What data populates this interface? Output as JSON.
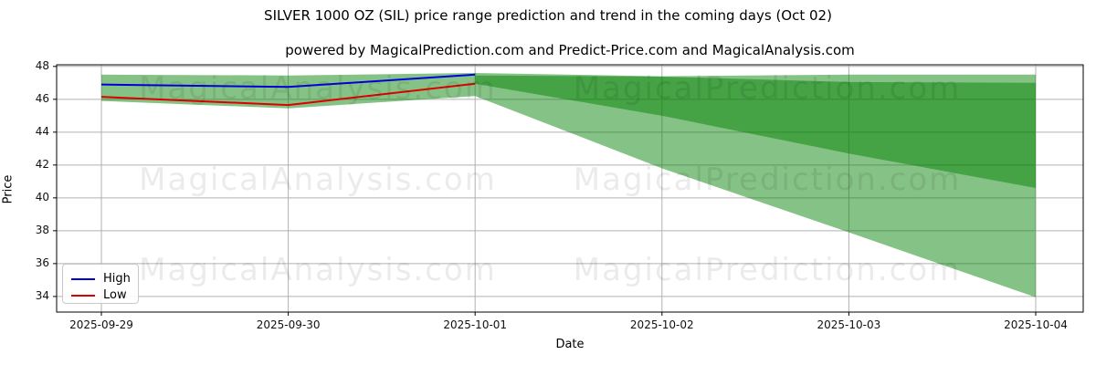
{
  "figure": {
    "title": "SILVER 1000 OZ (SIL) price range prediction and trend in the coming days (Oct 02)",
    "subtitle": "powered by MagicalPrediction.com and Predict-Price.com and MagicalAnalysis.com"
  },
  "watermark": {
    "left_text": "MagicalAnalysis.com",
    "right_text": "MagicalPrediction.com"
  },
  "legend": {
    "items": [
      {
        "label": "High",
        "color": "#0000dd"
      },
      {
        "label": "Low",
        "color": "#dd0000"
      }
    ]
  },
  "chart_data": {
    "type": "line",
    "title": "SILVER 1000 OZ (SIL) price range prediction and trend in the coming days (Oct 02)",
    "subtitle": "powered by MagicalPrediction.com and Predict-Price.com and MagicalAnalysis.com",
    "xlabel": "Date",
    "ylabel": "Price",
    "x_tick_labels": [
      "2025-09-29",
      "2025-09-30",
      "2025-10-01",
      "2025-10-02",
      "2025-10-03",
      "2025-10-04"
    ],
    "y_tick_labels": [
      34,
      36,
      38,
      40,
      42,
      44,
      46,
      48
    ],
    "ylim": [
      33.05,
      48.1
    ],
    "grid": true,
    "grid_color": "#b0b0b0",
    "spine_color": "#000000",
    "legend_position": "lower left",
    "series": [
      {
        "name": "High",
        "color": "#0000dd",
        "x": [
          "2025-09-29",
          "2025-09-30",
          "2025-10-01"
        ],
        "values": [
          46.9,
          46.75,
          47.5
        ]
      },
      {
        "name": "Low",
        "color": "#dd0000",
        "x": [
          "2025-09-29",
          "2025-09-30",
          "2025-10-01"
        ],
        "values": [
          46.15,
          45.65,
          46.95
        ]
      }
    ],
    "bands": [
      {
        "name": "historical-range",
        "x": [
          "2025-09-29",
          "2025-09-30",
          "2025-10-01"
        ],
        "top": [
          47.5,
          47.45,
          47.6
        ],
        "bottom": [
          45.9,
          45.45,
          46.2
        ]
      },
      {
        "name": "forecast-outer-range",
        "x": [
          "2025-10-01",
          "2025-10-02",
          "2025-10-03",
          "2025-10-04"
        ],
        "top": [
          47.6,
          47.4,
          47.5,
          47.5
        ],
        "bottom": [
          46.2,
          41.8,
          37.9,
          33.95
        ]
      },
      {
        "name": "forecast-inner-range",
        "x": [
          "2025-10-01",
          "2025-10-02",
          "2025-10-03",
          "2025-10-04"
        ],
        "top": [
          47.45,
          47.38,
          47.05,
          47.0
        ],
        "bottom": [
          46.95,
          45.0,
          42.7,
          40.6
        ]
      }
    ],
    "band_fill": {
      "color": "#008000",
      "alpha": 0.48
    }
  }
}
